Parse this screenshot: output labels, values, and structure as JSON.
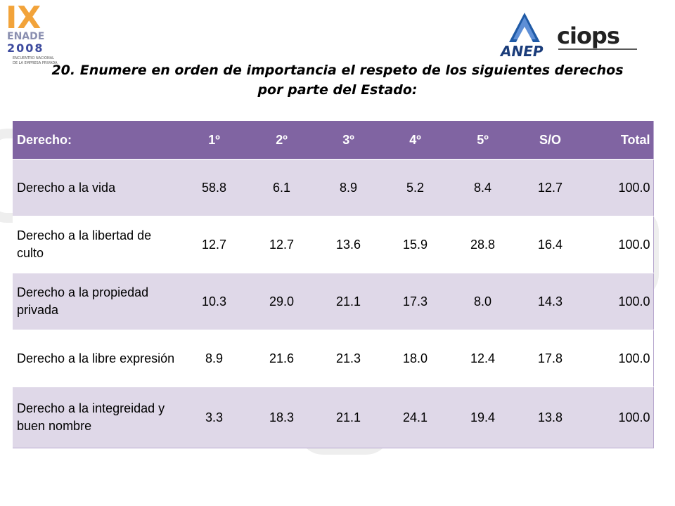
{
  "logos": {
    "ix": "IX",
    "enade": "ENADE",
    "year": "2008",
    "ix_sub1": "ENCUENTRO NACIONAL",
    "ix_sub2": "DE LA EMPRESA PRIVADA",
    "anep": "ANEP",
    "ciops": "ciops"
  },
  "title": {
    "line1": "20. Enumere en orden de importancia el respeto de los siguientes derechos",
    "line2": "por parte del Estado:"
  },
  "table": {
    "headers": [
      "Derecho:",
      "1º",
      "2º",
      "3º",
      "4º",
      "5º",
      "S/O",
      "Total"
    ],
    "rows": [
      {
        "label": "Derecho a la vida",
        "values": [
          "58.8",
          "6.1",
          "8.9",
          "5.2",
          "8.4",
          "12.7",
          "100.0"
        ]
      },
      {
        "label": "Derecho a la libertad de culto",
        "values": [
          "12.7",
          "12.7",
          "13.6",
          "15.9",
          "28.8",
          "16.4",
          "100.0"
        ]
      },
      {
        "label": "Derecho a la propiedad privada",
        "values": [
          "10.3",
          "29.0",
          "21.1",
          "17.3",
          "8.0",
          "14.3",
          "100.0"
        ]
      },
      {
        "label": "Derecho a la libre expresión",
        "values": [
          "8.9",
          "21.6",
          "21.3",
          "18.0",
          "12.4",
          "17.8",
          "100.0"
        ]
      },
      {
        "label": "Derecho a la integreidad y buen nombre",
        "values": [
          "3.3",
          "18.3",
          "21.1",
          "24.1",
          "19.4",
          "13.8",
          "100.0"
        ]
      }
    ]
  },
  "colors": {
    "header": "#8064a2",
    "band": "#dfd8e8",
    "anep_blue": "#1f5aa6",
    "anep_text": "#1a3c7a"
  }
}
